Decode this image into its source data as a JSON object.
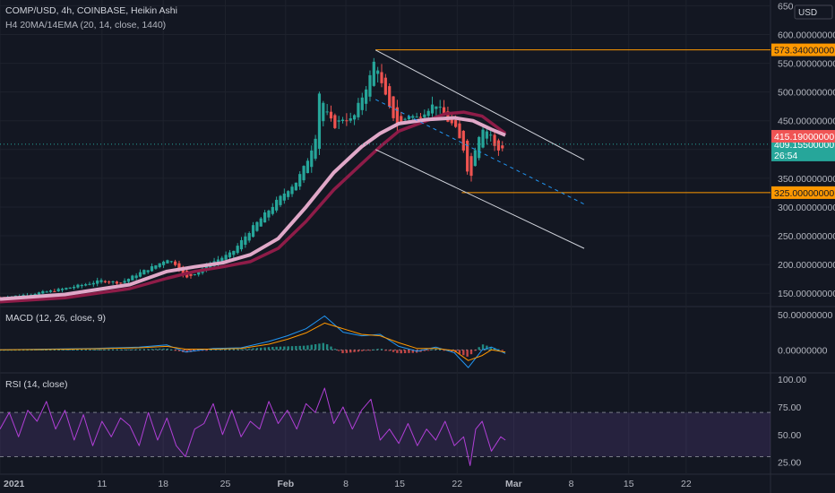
{
  "header": {
    "symbol_line": "COMP/USD, 4h, COINBASE, Heikin Ashi",
    "indicator_line": "H4 20MA/14EMA (20, 14, close, 1440)"
  },
  "currency_badge": "USD",
  "colors": {
    "background": "#131722",
    "grid": "#1e222d",
    "up": "#26a69a",
    "down": "#ef5350",
    "ma": "#e0a8c8",
    "ema": "#8e1c48",
    "level_line": "#ff9800",
    "last_price": "#26a69a",
    "ema_badge": "#f05454",
    "channel": "#d1d4dc",
    "midline": "#2196f3",
    "macd": "#2196f3",
    "signal": "#ff9800",
    "rsi": "#b03fd6",
    "rsi_band": "#7e57c2"
  },
  "chart_data": [
    {
      "type": "candlestick",
      "title": "COMP/USD, 4h, COINBASE, Heikin Ashi",
      "x_ticks": [
        "2021",
        "11",
        "18",
        "25",
        "Feb",
        "8",
        "15",
        "22",
        "Mar",
        "8",
        "15",
        "22"
      ],
      "ylim": [
        130,
        660
      ],
      "y_ticks": [
        "650",
        "600.00000000",
        "550.00000000",
        "500.00000000",
        "450.00000000",
        "400.00000000",
        "350.00000000",
        "300.00000000",
        "250.00000000",
        "200.00000000",
        "150.00000000"
      ],
      "close_series_sampled": [
        {
          "t": 0,
          "c": 142
        },
        {
          "t": 3,
          "c": 148
        },
        {
          "t": 6,
          "c": 155
        },
        {
          "t": 9,
          "c": 165
        },
        {
          "t": 11,
          "c": 172
        },
        {
          "t": 13,
          "c": 168
        },
        {
          "t": 15,
          "c": 185
        },
        {
          "t": 17,
          "c": 200
        },
        {
          "t": 18,
          "c": 210
        },
        {
          "t": 19,
          "c": 200
        },
        {
          "t": 20,
          "c": 175
        },
        {
          "t": 21,
          "c": 185
        },
        {
          "t": 23,
          "c": 205
        },
        {
          "t": 25,
          "c": 220
        },
        {
          "t": 27,
          "c": 260
        },
        {
          "t": 29,
          "c": 295
        },
        {
          "t": 31,
          "c": 330
        },
        {
          "t": 32,
          "c": 345
        },
        {
          "t": 33,
          "c": 375
        },
        {
          "t": 34,
          "c": 420
        },
        {
          "t": 34.5,
          "c": 510
        },
        {
          "t": 35,
          "c": 470
        },
        {
          "t": 36,
          "c": 440
        },
        {
          "t": 37,
          "c": 455
        },
        {
          "t": 38,
          "c": 450
        },
        {
          "t": 39,
          "c": 490
        },
        {
          "t": 40,
          "c": 530
        },
        {
          "t": 40.5,
          "c": 563
        },
        {
          "t": 41,
          "c": 520
        },
        {
          "t": 42,
          "c": 470
        },
        {
          "t": 43,
          "c": 440
        },
        {
          "t": 44,
          "c": 460
        },
        {
          "t": 45,
          "c": 455
        },
        {
          "t": 46,
          "c": 470
        },
        {
          "t": 47,
          "c": 480
        },
        {
          "t": 48,
          "c": 455
        },
        {
          "t": 49,
          "c": 440
        },
        {
          "t": 50,
          "c": 400
        },
        {
          "t": 50.7,
          "c": 340
        },
        {
          "t": 51.3,
          "c": 410
        },
        {
          "t": 52,
          "c": 440
        },
        {
          "t": 53,
          "c": 425
        },
        {
          "t": 53.5,
          "c": 395
        },
        {
          "t": 54.5,
          "c": 409
        }
      ],
      "ma_20": [
        {
          "t": 0,
          "v": 140
        },
        {
          "t": 7,
          "v": 148
        },
        {
          "t": 14,
          "v": 165
        },
        {
          "t": 18,
          "v": 188
        },
        {
          "t": 21,
          "v": 196
        },
        {
          "t": 24,
          "v": 203
        },
        {
          "t": 27,
          "v": 217
        },
        {
          "t": 30,
          "v": 245
        },
        {
          "t": 33,
          "v": 300
        },
        {
          "t": 36,
          "v": 360
        },
        {
          "t": 39,
          "v": 405
        },
        {
          "t": 41,
          "v": 428
        },
        {
          "t": 43,
          "v": 445
        },
        {
          "t": 46,
          "v": 452
        },
        {
          "t": 49,
          "v": 455
        },
        {
          "t": 51,
          "v": 450
        },
        {
          "t": 53,
          "v": 435
        },
        {
          "t": 54.5,
          "v": 425
        }
      ],
      "ema_14": [
        {
          "t": 0,
          "v": 135
        },
        {
          "t": 7,
          "v": 142
        },
        {
          "t": 14,
          "v": 158
        },
        {
          "t": 18,
          "v": 176
        },
        {
          "t": 21,
          "v": 188
        },
        {
          "t": 24,
          "v": 196
        },
        {
          "t": 27,
          "v": 205
        },
        {
          "t": 30,
          "v": 228
        },
        {
          "t": 33,
          "v": 275
        },
        {
          "t": 36,
          "v": 330
        },
        {
          "t": 39,
          "v": 375
        },
        {
          "t": 41,
          "v": 405
        },
        {
          "t": 43,
          "v": 432
        },
        {
          "t": 46,
          "v": 450
        },
        {
          "t": 48,
          "v": 462
        },
        {
          "t": 50,
          "v": 465
        },
        {
          "t": 52,
          "v": 458
        },
        {
          "t": 54.5,
          "v": 428
        }
      ],
      "horizontal_levels": [
        573.34,
        325.0
      ],
      "level_labels": [
        "573.34000000",
        "325.00000000"
      ],
      "last_price": 409.155,
      "last_price_label": "409.15500000",
      "countdown": "26:54",
      "ema_value_label": "415.19000000",
      "channel": {
        "upper": [
          {
            "t": 40.5,
            "v": 573
          },
          {
            "t": 63,
            "v": 382
          }
        ],
        "lower": [
          {
            "t": 40.5,
            "v": 400
          },
          {
            "t": 63,
            "v": 228
          }
        ],
        "mid": [
          {
            "t": 40.5,
            "v": 487
          },
          {
            "t": 63,
            "v": 305
          }
        ]
      }
    },
    {
      "type": "line",
      "title": "MACD (12, 26, close, 9)",
      "ylim": [
        -30,
        60
      ],
      "y_ticks": [
        "50.00000000",
        "0.00000000"
      ],
      "macd": [
        {
          "t": 0,
          "v": 0
        },
        {
          "t": 5,
          "v": 1
        },
        {
          "t": 10,
          "v": 2
        },
        {
          "t": 15,
          "v": 4
        },
        {
          "t": 18,
          "v": 7
        },
        {
          "t": 20,
          "v": -3
        },
        {
          "t": 23,
          "v": 2
        },
        {
          "t": 26,
          "v": 3
        },
        {
          "t": 29,
          "v": 12
        },
        {
          "t": 31,
          "v": 20
        },
        {
          "t": 33,
          "v": 30
        },
        {
          "t": 35,
          "v": 48
        },
        {
          "t": 37,
          "v": 25
        },
        {
          "t": 39,
          "v": 20
        },
        {
          "t": 41,
          "v": 22
        },
        {
          "t": 43,
          "v": 5
        },
        {
          "t": 45,
          "v": -2
        },
        {
          "t": 47,
          "v": 4
        },
        {
          "t": 49,
          "v": -4
        },
        {
          "t": 50.5,
          "v": -25
        },
        {
          "t": 52,
          "v": 0
        },
        {
          "t": 53,
          "v": 4
        },
        {
          "t": 54.5,
          "v": -5
        }
      ],
      "signal": [
        {
          "t": 0,
          "v": 0
        },
        {
          "t": 5,
          "v": 0.5
        },
        {
          "t": 10,
          "v": 1.5
        },
        {
          "t": 15,
          "v": 3
        },
        {
          "t": 18,
          "v": 5
        },
        {
          "t": 20,
          "v": 1
        },
        {
          "t": 23,
          "v": 1
        },
        {
          "t": 26,
          "v": 2
        },
        {
          "t": 29,
          "v": 8
        },
        {
          "t": 31,
          "v": 15
        },
        {
          "t": 33,
          "v": 24
        },
        {
          "t": 35,
          "v": 38
        },
        {
          "t": 37,
          "v": 30
        },
        {
          "t": 39,
          "v": 22
        },
        {
          "t": 41,
          "v": 20
        },
        {
          "t": 43,
          "v": 10
        },
        {
          "t": 45,
          "v": 2
        },
        {
          "t": 47,
          "v": 2
        },
        {
          "t": 49,
          "v": -1
        },
        {
          "t": 50.5,
          "v": -15
        },
        {
          "t": 52,
          "v": -8
        },
        {
          "t": 53,
          "v": 0
        },
        {
          "t": 54.5,
          "v": -3
        }
      ]
    },
    {
      "type": "line",
      "title": "RSI (14, close)",
      "ylim": [
        15,
        105
      ],
      "y_ticks": [
        "100.00",
        "75.00",
        "50.00",
        "25.00"
      ],
      "band": [
        30,
        70
      ],
      "rsi": [
        {
          "t": 0,
          "v": 55
        },
        {
          "t": 1,
          "v": 70
        },
        {
          "t": 2,
          "v": 48
        },
        {
          "t": 3,
          "v": 72
        },
        {
          "t": 4,
          "v": 62
        },
        {
          "t": 5,
          "v": 80
        },
        {
          "t": 6,
          "v": 55
        },
        {
          "t": 7,
          "v": 72
        },
        {
          "t": 8,
          "v": 45
        },
        {
          "t": 9,
          "v": 68
        },
        {
          "t": 10,
          "v": 40
        },
        {
          "t": 11,
          "v": 62
        },
        {
          "t": 12,
          "v": 48
        },
        {
          "t": 13,
          "v": 65
        },
        {
          "t": 14,
          "v": 58
        },
        {
          "t": 15,
          "v": 40
        },
        {
          "t": 16,
          "v": 70
        },
        {
          "t": 17,
          "v": 45
        },
        {
          "t": 18,
          "v": 65
        },
        {
          "t": 19,
          "v": 40
        },
        {
          "t": 20,
          "v": 30
        },
        {
          "t": 21,
          "v": 55
        },
        {
          "t": 22,
          "v": 60
        },
        {
          "t": 23,
          "v": 78
        },
        {
          "t": 24,
          "v": 50
        },
        {
          "t": 25,
          "v": 72
        },
        {
          "t": 26,
          "v": 48
        },
        {
          "t": 27,
          "v": 62
        },
        {
          "t": 28,
          "v": 55
        },
        {
          "t": 29,
          "v": 80
        },
        {
          "t": 30,
          "v": 60
        },
        {
          "t": 31,
          "v": 72
        },
        {
          "t": 32,
          "v": 55
        },
        {
          "t": 33,
          "v": 78
        },
        {
          "t": 34,
          "v": 70
        },
        {
          "t": 35,
          "v": 92
        },
        {
          "t": 36,
          "v": 60
        },
        {
          "t": 37,
          "v": 75
        },
        {
          "t": 38,
          "v": 55
        },
        {
          "t": 39,
          "v": 72
        },
        {
          "t": 40,
          "v": 82
        },
        {
          "t": 41,
          "v": 45
        },
        {
          "t": 42,
          "v": 55
        },
        {
          "t": 43,
          "v": 42
        },
        {
          "t": 44,
          "v": 60
        },
        {
          "t": 45,
          "v": 40
        },
        {
          "t": 46,
          "v": 55
        },
        {
          "t": 47,
          "v": 45
        },
        {
          "t": 48,
          "v": 62
        },
        {
          "t": 49,
          "v": 40
        },
        {
          "t": 50,
          "v": 48
        },
        {
          "t": 50.7,
          "v": 22
        },
        {
          "t": 51.3,
          "v": 55
        },
        {
          "t": 52,
          "v": 62
        },
        {
          "t": 53,
          "v": 35
        },
        {
          "t": 54,
          "v": 48
        },
        {
          "t": 54.5,
          "v": 45
        }
      ]
    }
  ]
}
